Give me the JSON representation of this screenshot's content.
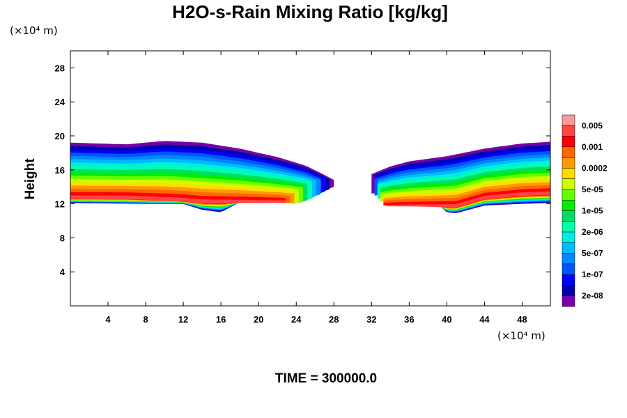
{
  "chart_data": {
    "type": "contour",
    "title": "H2O-s-Rain Mixing Ratio [kg/kg]",
    "ylabel": "Height",
    "xunit": "(×10⁴ m)",
    "yunit": "(×10⁴ m)",
    "footer": "TIME = 300000.0",
    "xlim": [
      0,
      51
    ],
    "ylim": [
      0,
      30
    ],
    "x_ticks": [
      4,
      8,
      12,
      16,
      20,
      24,
      28,
      32,
      36,
      40,
      44,
      48
    ],
    "y_ticks": [
      4,
      8,
      12,
      16,
      20,
      24,
      28
    ],
    "colorbar": {
      "levels": [
        "0.005",
        "0.001",
        "0.0002",
        "5e-05",
        "1e-05",
        "2e-06",
        "5e-07",
        "1e-07",
        "2e-08"
      ],
      "colors": [
        "#ff9999",
        "#ff4444",
        "#ff0000",
        "#ff6600",
        "#ff9900",
        "#ffdd00",
        "#ccff00",
        "#66ff00",
        "#00ee00",
        "#00dd66",
        "#00ffaa",
        "#00eedd",
        "#00bbff",
        "#0088ff",
        "#0055ff",
        "#0000ff",
        "#0000aa",
        "#7700aa"
      ]
    },
    "regions": [
      {
        "name": "left-rain-band",
        "x_range": [
          0,
          28
        ],
        "top_edge": [
          [
            0,
            19.2
          ],
          [
            6,
            19.0
          ],
          [
            10,
            19.4
          ],
          [
            14,
            19.2
          ],
          [
            18,
            18.5
          ],
          [
            22,
            17.5
          ],
          [
            25,
            16.5
          ],
          [
            27,
            15.4
          ],
          [
            28,
            14.8
          ]
        ],
        "bottom_edge": [
          [
            0,
            12.1
          ],
          [
            8,
            12.0
          ],
          [
            12,
            12.0
          ],
          [
            14,
            11.3
          ],
          [
            16,
            11.0
          ],
          [
            18,
            12.2
          ],
          [
            22,
            12.4
          ],
          [
            24,
            12.0
          ],
          [
            26,
            13.2
          ],
          [
            28,
            14.0
          ]
        ],
        "max_axis": [
          [
            0,
            12.6
          ],
          [
            6,
            12.6
          ],
          [
            10,
            12.4
          ],
          [
            12,
            12.3
          ],
          [
            14,
            12.1
          ]
        ]
      },
      {
        "name": "right-rain-band",
        "x_range": [
          32,
          51
        ],
        "top_edge": [
          [
            32,
            15.5
          ],
          [
            34,
            16.4
          ],
          [
            36,
            17.0
          ],
          [
            40,
            17.6
          ],
          [
            44,
            18.5
          ],
          [
            48,
            19.1
          ],
          [
            51,
            19.3
          ]
        ],
        "bottom_edge": [
          [
            32,
            13.2
          ],
          [
            34,
            13.6
          ],
          [
            37,
            13.0
          ],
          [
            39,
            12.0
          ],
          [
            40,
            11.0
          ],
          [
            41,
            10.9
          ],
          [
            44,
            11.8
          ],
          [
            48,
            12.0
          ],
          [
            51,
            12.1
          ]
        ],
        "max_axis": [
          [
            41,
            11.6
          ],
          [
            44,
            12.6
          ],
          [
            48,
            13.0
          ],
          [
            51,
            13.1
          ]
        ]
      }
    ]
  }
}
